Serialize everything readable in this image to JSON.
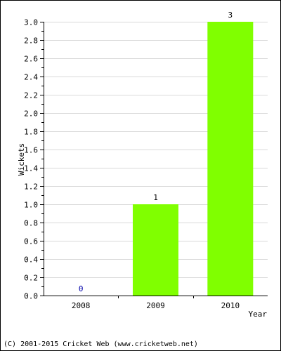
{
  "chart_data": {
    "type": "bar",
    "categories": [
      "2008",
      "2009",
      "2010"
    ],
    "values": [
      0,
      1,
      3
    ],
    "data_labels": [
      "0",
      "1",
      "3"
    ],
    "xlabel": "Year",
    "ylabel": "Wickets",
    "ylim": [
      0,
      3
    ],
    "yticks": [
      "0.0",
      "0.2",
      "0.4",
      "0.6",
      "0.8",
      "1.0",
      "1.2",
      "1.4",
      "1.6",
      "1.8",
      "2.0",
      "2.2",
      "2.4",
      "2.6",
      "2.8",
      "3.0"
    ],
    "grid": true,
    "bar_color": "#80ff00",
    "zero_label_color": "#0000aa"
  },
  "footer": {
    "copyright": "(C) 2001-2015 Cricket Web (www.cricketweb.net)"
  }
}
